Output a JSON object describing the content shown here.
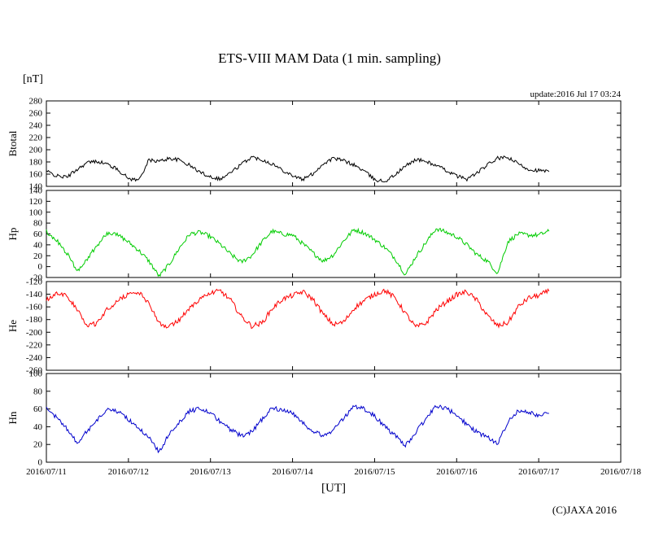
{
  "title": "ETS-VIII MAM Data (1 min. sampling)",
  "unit_label": "[nT]",
  "update_text": "update:2016 Jul 17 03:24",
  "xlabel": "[UT]",
  "copyright": "(C)JAXA 2016",
  "chart_data": {
    "type": "line",
    "title": "ETS-VIII MAM Data (1 min. sampling)",
    "x_unit": "days since 2016/07/11 00:00 UT",
    "xlim": [
      0,
      7
    ],
    "x_tick_positions": [
      0,
      1,
      2,
      3,
      4,
      5,
      6,
      7
    ],
    "x_tick_labels": [
      "2016/07/11",
      "2016/07/12",
      "2016/07/13",
      "2016/07/14",
      "2016/07/15",
      "2016/07/16",
      "2016/07/17",
      "2016/07/18"
    ],
    "grid": false,
    "x": [
      0,
      0.125,
      0.25,
      0.375,
      0.5,
      0.625,
      0.75,
      0.875,
      1,
      1.125,
      1.25,
      1.375,
      1.5,
      1.625,
      1.75,
      1.875,
      2,
      2.125,
      2.25,
      2.375,
      2.5,
      2.625,
      2.75,
      2.875,
      3,
      3.125,
      3.25,
      3.375,
      3.5,
      3.625,
      3.75,
      3.875,
      4,
      4.125,
      4.25,
      4.375,
      4.5,
      4.625,
      4.75,
      4.875,
      5,
      5.125,
      5.25,
      5.375,
      5.5,
      5.625,
      5.75,
      5.875,
      6,
      6.125
    ],
    "panels": [
      {
        "ylabel": "Btotal",
        "color": "#000000",
        "ylim": [
          140,
          280
        ],
        "ytick_step": 20,
        "yticks": [
          140,
          160,
          180,
          200,
          220,
          240,
          260,
          280
        ],
        "noise": 3,
        "values": [
          165,
          157,
          155,
          168,
          179,
          181,
          176,
          167,
          153,
          150,
          183,
          181,
          186,
          183,
          174,
          163,
          156,
          152,
          163,
          176,
          188,
          184,
          177,
          167,
          158,
          151,
          161,
          177,
          186,
          182,
          175,
          165,
          151,
          148,
          159,
          173,
          184,
          181,
          174,
          166,
          157,
          152,
          162,
          175,
          186,
          187,
          177,
          168,
          166,
          164
        ]
      },
      {
        "ylabel": "Hp",
        "color": "#00cc00",
        "ylim": [
          -20,
          140
        ],
        "ytick_step": 20,
        "yticks": [
          -20,
          0,
          20,
          40,
          60,
          80,
          100,
          120,
          140
        ],
        "noise": 4,
        "values": [
          65,
          48,
          25,
          -8,
          15,
          40,
          62,
          58,
          45,
          30,
          10,
          -18,
          5,
          35,
          60,
          63,
          55,
          40,
          22,
          8,
          20,
          45,
          65,
          60,
          58,
          42,
          25,
          10,
          22,
          48,
          68,
          62,
          50,
          35,
          15,
          -15,
          18,
          44,
          70,
          63,
          55,
          40,
          22,
          10,
          -12,
          46,
          60,
          58,
          58,
          65
        ]
      },
      {
        "ylabel": "He",
        "color": "#ff0000",
        "ylim": [
          -260,
          -120
        ],
        "ytick_step": 20,
        "yticks": [
          -260,
          -240,
          -220,
          -200,
          -180,
          -160,
          -140,
          -120
        ],
        "noise": 4,
        "values": [
          -148,
          -138,
          -142,
          -165,
          -190,
          -185,
          -162,
          -150,
          -140,
          -136,
          -155,
          -185,
          -192,
          -180,
          -160,
          -147,
          -138,
          -135,
          -150,
          -175,
          -190,
          -186,
          -163,
          -148,
          -142,
          -136,
          -148,
          -172,
          -188,
          -184,
          -162,
          -150,
          -140,
          -134,
          -146,
          -170,
          -192,
          -186,
          -165,
          -152,
          -141,
          -136,
          -150,
          -174,
          -190,
          -185,
          -160,
          -146,
          -142,
          -135
        ]
      },
      {
        "ylabel": "Hn",
        "color": "#0000cc",
        "ylim": [
          0,
          100
        ],
        "ytick_step": 20,
        "yticks": [
          0,
          20,
          40,
          60,
          80,
          100
        ],
        "noise": 2.5,
        "values": [
          62,
          50,
          38,
          22,
          35,
          48,
          60,
          57,
          48,
          38,
          28,
          12,
          32,
          46,
          58,
          60,
          55,
          45,
          36,
          30,
          34,
          48,
          62,
          58,
          56,
          44,
          35,
          30,
          36,
          50,
          63,
          60,
          52,
          40,
          30,
          18,
          34,
          48,
          64,
          60,
          54,
          42,
          34,
          28,
          20,
          46,
          58,
          56,
          52,
          55
        ]
      }
    ]
  }
}
